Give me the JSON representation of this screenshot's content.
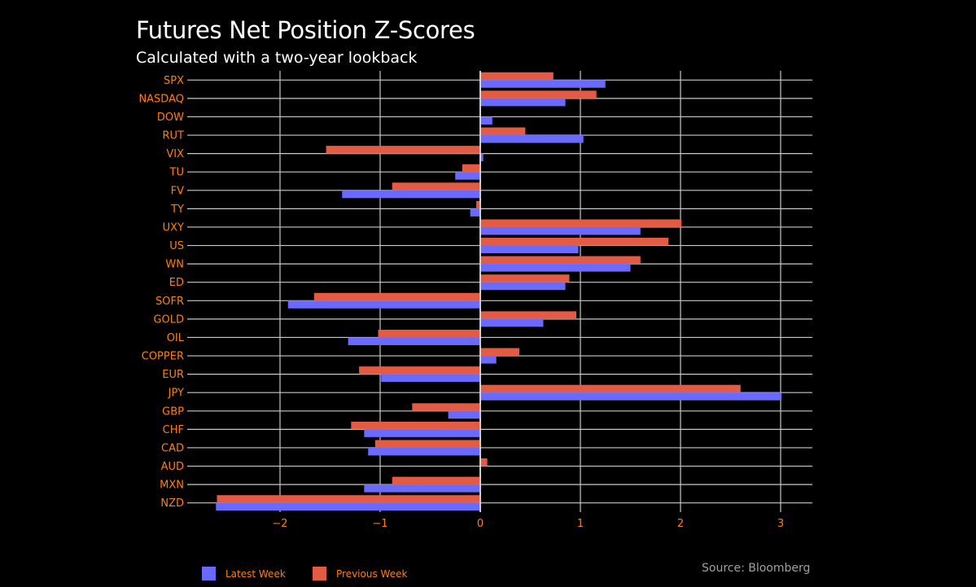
{
  "title": "Futures Net Position Z-Scores",
  "subtitle": "Calculated with a two-year lookback",
  "source": "Source: Bloomberg",
  "colors": {
    "latest": "#6a6aff",
    "previous": "#e45b44",
    "axis_text": "#ff7f0e",
    "grid": "#c8c8c8",
    "background": "#000000"
  },
  "chart_data": {
    "type": "bar",
    "orientation": "horizontal",
    "categories": [
      "SPX",
      "NASDAQ",
      "DOW",
      "RUT",
      "VIX",
      "TU",
      "FV",
      "TY",
      "UXY",
      "US",
      "WN",
      "ED",
      "SOFR",
      "GOLD",
      "OIL",
      "COPPER",
      "EUR",
      "JPY",
      "GBP",
      "CHF",
      "CAD",
      "AUD",
      "MXN",
      "NZD"
    ],
    "series": [
      {
        "name": "Latest Week",
        "values": [
          1.25,
          0.85,
          0.12,
          1.03,
          0.03,
          -0.25,
          -1.38,
          -0.1,
          1.6,
          0.98,
          1.5,
          0.85,
          -1.92,
          0.63,
          -1.32,
          0.16,
          -0.99,
          3.01,
          -0.32,
          -1.16,
          -1.12,
          0.0,
          -1.16,
          -2.64
        ]
      },
      {
        "name": "Previous Week",
        "values": [
          0.73,
          1.16,
          0.0,
          0.45,
          -1.54,
          -0.18,
          -0.88,
          -0.04,
          2.01,
          1.88,
          1.6,
          0.89,
          -1.66,
          0.96,
          -1.02,
          0.39,
          -1.21,
          2.6,
          -0.68,
          -1.29,
          -1.05,
          0.07,
          -0.88,
          -2.63
        ]
      }
    ],
    "xticks": [
      "−2",
      "−1",
      "0",
      "1",
      "2",
      "3"
    ],
    "xlim": [
      -2.8,
      3.3
    ],
    "grid": true,
    "legend_position": "bottom-left"
  },
  "legend": {
    "latest": "Latest Week",
    "previous": "Previous Week"
  }
}
